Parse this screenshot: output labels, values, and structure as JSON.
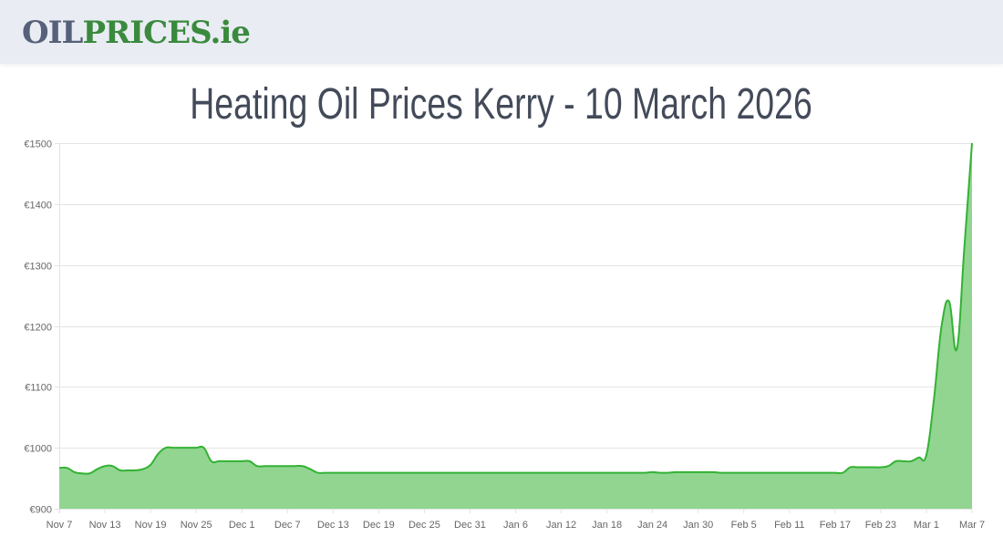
{
  "header": {
    "logo_part1": "OIL",
    "logo_part2": "PRICES.ie"
  },
  "page_title": "Heating Oil Prices Kerry - 10 March 2026",
  "colors": {
    "line": "#33b233",
    "fill": "#91d591",
    "grid": "#e3e3e3",
    "logo_gray": "#566179",
    "logo_green": "#3a8a3e",
    "title": "#434a59"
  },
  "chart_data": {
    "type": "area",
    "title": "",
    "xlabel": "",
    "ylabel": "",
    "ylim": [
      900,
      1500
    ],
    "yticks": [
      "€900",
      "€1000",
      "€1100",
      "€1200",
      "€1300",
      "€1400",
      "€1500"
    ],
    "ytick_values": [
      900,
      1000,
      1100,
      1200,
      1300,
      1400,
      1500
    ],
    "xticks": [
      "Nov 7",
      "Nov 13",
      "Nov 19",
      "Nov 25",
      "Dec 1",
      "Dec 7",
      "Dec 13",
      "Dec 19",
      "Dec 25",
      "Dec 31",
      "Jan 6",
      "Jan 12",
      "Jan 18",
      "Jan 24",
      "Jan 30",
      "Feb 5",
      "Feb 11",
      "Feb 17",
      "Feb 23",
      "Mar 1",
      "Mar 7"
    ],
    "grid": true,
    "legend": "none",
    "x": [
      "Nov 7",
      "Nov 8",
      "Nov 9",
      "Nov 10",
      "Nov 11",
      "Nov 12",
      "Nov 13",
      "Nov 14",
      "Nov 15",
      "Nov 16",
      "Nov 17",
      "Nov 18",
      "Nov 19",
      "Nov 20",
      "Nov 21",
      "Nov 22",
      "Nov 23",
      "Nov 24",
      "Nov 25",
      "Nov 26",
      "Nov 27",
      "Nov 28",
      "Nov 29",
      "Nov 30",
      "Dec 1",
      "Dec 2",
      "Dec 3",
      "Dec 4",
      "Dec 5",
      "Dec 6",
      "Dec 7",
      "Dec 8",
      "Dec 9",
      "Dec 10",
      "Dec 11",
      "Dec 12",
      "Dec 13",
      "Dec 14",
      "Dec 15",
      "Dec 16",
      "Dec 17",
      "Dec 18",
      "Dec 19",
      "Dec 20",
      "Dec 21",
      "Dec 22",
      "Dec 23",
      "Dec 24",
      "Dec 25",
      "Dec 26",
      "Dec 27",
      "Dec 28",
      "Dec 29",
      "Dec 30",
      "Dec 31",
      "Jan 1",
      "Jan 2",
      "Jan 3",
      "Jan 4",
      "Jan 5",
      "Jan 6",
      "Jan 7",
      "Jan 8",
      "Jan 9",
      "Jan 10",
      "Jan 11",
      "Jan 12",
      "Jan 13",
      "Jan 14",
      "Jan 15",
      "Jan 16",
      "Jan 17",
      "Jan 18",
      "Jan 19",
      "Jan 20",
      "Jan 21",
      "Jan 22",
      "Jan 23",
      "Jan 24",
      "Jan 25",
      "Jan 26",
      "Jan 27",
      "Jan 28",
      "Jan 29",
      "Jan 30",
      "Jan 31",
      "Feb 1",
      "Feb 2",
      "Feb 3",
      "Feb 4",
      "Feb 5",
      "Feb 6",
      "Feb 7",
      "Feb 8",
      "Feb 9",
      "Feb 10",
      "Feb 11",
      "Feb 12",
      "Feb 13",
      "Feb 14",
      "Feb 15",
      "Feb 16",
      "Feb 17",
      "Feb 18",
      "Feb 19",
      "Feb 20",
      "Feb 21",
      "Feb 22",
      "Feb 23",
      "Feb 24",
      "Feb 25",
      "Feb 26",
      "Feb 27",
      "Feb 28",
      "Mar 1",
      "Mar 2",
      "Mar 3",
      "Mar 4",
      "Mar 5",
      "Mar 6",
      "Mar 7"
    ],
    "values": [
      967,
      967,
      960,
      958,
      958,
      965,
      970,
      970,
      963,
      963,
      963,
      965,
      972,
      990,
      1000,
      1000,
      1000,
      1000,
      1000,
      1000,
      978,
      978,
      978,
      978,
      978,
      978,
      970,
      970,
      970,
      970,
      970,
      970,
      970,
      965,
      959,
      959,
      959,
      959,
      959,
      959,
      959,
      959,
      959,
      959,
      959,
      959,
      959,
      959,
      959,
      959,
      959,
      959,
      959,
      959,
      959,
      959,
      959,
      959,
      959,
      959,
      959,
      959,
      959,
      959,
      959,
      959,
      959,
      959,
      959,
      959,
      959,
      959,
      959,
      959,
      959,
      959,
      959,
      959,
      960,
      959,
      959,
      960,
      960,
      960,
      960,
      960,
      960,
      959,
      959,
      959,
      959,
      959,
      959,
      959,
      959,
      959,
      959,
      959,
      959,
      959,
      959,
      959,
      959,
      959,
      968,
      968,
      968,
      968,
      968,
      970,
      978,
      978,
      978,
      984,
      988,
      1080,
      1200,
      1240,
      1162,
      1330,
      1500
    ]
  }
}
